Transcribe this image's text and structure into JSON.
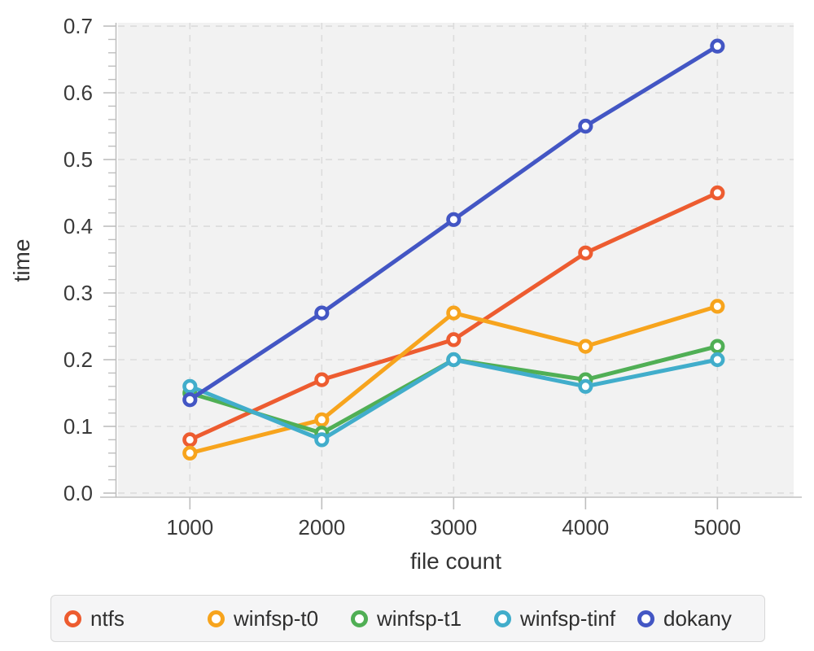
{
  "figure": {
    "background": "#ffffff",
    "plot_background": "#f2f2f2",
    "grid_color": "#dcdcdc",
    "axis_color": "#bfbfbf",
    "tick_text_color": "#3a3a3a",
    "axis_title_color": "#333333"
  },
  "chart_data": {
    "type": "line",
    "title": "",
    "xlabel": "file count",
    "ylabel": "time",
    "x": [
      1000,
      2000,
      3000,
      4000,
      5000
    ],
    "series": [
      {
        "name": "ntfs",
        "color": "#ed5c30",
        "values": [
          0.08,
          0.17,
          0.23,
          0.36,
          0.45
        ]
      },
      {
        "name": "winfsp-t0",
        "color": "#f7a41d",
        "values": [
          0.06,
          0.11,
          0.27,
          0.22,
          0.28
        ]
      },
      {
        "name": "winfsp-t1",
        "color": "#50af55",
        "values": [
          0.15,
          0.09,
          0.2,
          0.17,
          0.22
        ]
      },
      {
        "name": "winfsp-tinf",
        "color": "#41adcb",
        "values": [
          0.16,
          0.08,
          0.2,
          0.16,
          0.2
        ]
      },
      {
        "name": "dokany",
        "color": "#4356c4",
        "values": [
          0.14,
          0.27,
          0.41,
          0.55,
          0.67
        ]
      }
    ],
    "xticks": [
      1000,
      2000,
      3000,
      4000,
      5000
    ],
    "xtick_labels": [
      "1000",
      "2000",
      "3000",
      "4000",
      "5000"
    ],
    "yticks": [
      0.0,
      0.1,
      0.2,
      0.3,
      0.4,
      0.5,
      0.6,
      0.7
    ],
    "ytick_labels": [
      "0.0",
      "0.1",
      "0.2",
      "0.3",
      "0.4",
      "0.5",
      "0.6",
      "0.7"
    ],
    "y_minor_tick_step": 0.02,
    "xlim": [
      455,
      5578
    ],
    "ylim": [
      -0.0049,
      0.7025
    ],
    "grid": true,
    "grid_style": "dashed",
    "marker": "open-circle",
    "legend_position": "bottom"
  }
}
